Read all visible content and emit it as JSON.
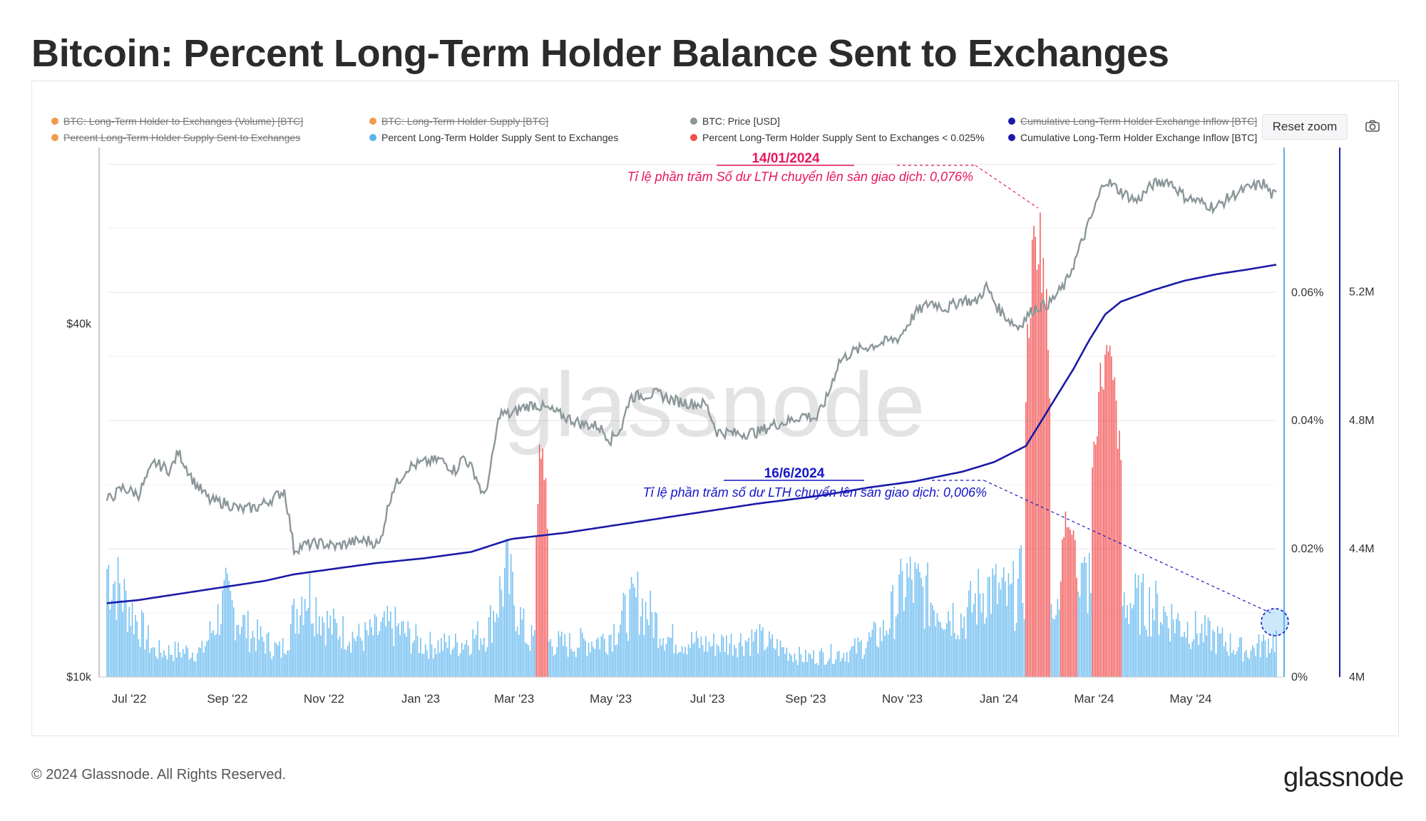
{
  "title": "Bitcoin: Percent Long-Term Holder Balance Sent to Exchanges",
  "legend": [
    {
      "label": "BTC: Long-Term Holder to Exchanges (Volume) [BTC]",
      "color": "#f2994a",
      "hidden": true
    },
    {
      "label": "BTC: Long-Term Holder Supply [BTC]",
      "color": "#f2994a",
      "hidden": true
    },
    {
      "label": "BTC: Price [USD]",
      "color": "#8b979a",
      "hidden": false
    },
    {
      "label": "Cumulative Long-Term Holder Exchange Inflow [BTC]",
      "color": "#1a1aa8",
      "hidden": true
    },
    {
      "label": "Percent Long-Term Holder Supply Sent to Exchanges",
      "color": "#f2994a",
      "hidden": true
    },
    {
      "label": "Percent Long-Term Holder Supply Sent to Exchanges",
      "color": "#5ab4ef",
      "hidden": false
    },
    {
      "label": "Percent Long-Term Holder Supply Sent to Exchanges < 0.025%",
      "color": "#f24c4c",
      "hidden": false
    },
    {
      "label": "Cumulative Long-Term Holder Exchange Inflow [BTC]",
      "color": "#1a1aa8",
      "hidden": false
    }
  ],
  "toolbar": {
    "reset_zoom": "Reset zoom",
    "camera_icon": "camera-icon"
  },
  "watermark": "glassnode",
  "annotations": [
    {
      "date": "14/01/2024",
      "text": "Tỉ lệ phần trăm Số dư LTH chuyển lên sàn giao dịch: 0,076%",
      "color": "#e8175d"
    },
    {
      "date": "16/6/2024",
      "text": "Tỉ lệ phần trăm số dư LTH chuyển lên sàn giao dịch: 0,006%",
      "color": "#1515c8"
    }
  ],
  "footer": {
    "copyright": "© 2024 Glassnode. All Rights Reserved.",
    "brand": "glassnode"
  },
  "chart_data": {
    "type": "bar",
    "x_ticks": [
      "Jul '22",
      "Sep '22",
      "Nov '22",
      "Jan '23",
      "Mar '23",
      "May '23",
      "Jul '23",
      "Sep '23",
      "Nov '23",
      "Jan '24",
      "Mar '24",
      "May '24"
    ],
    "y_left": {
      "ticks": [
        "$10k",
        "$40k"
      ],
      "scale": "log",
      "range": [
        10000,
        80000
      ]
    },
    "y_right_percent": {
      "ticks": [
        "0%",
        "0.02%",
        "0.04%",
        "0.06%"
      ],
      "range": [
        0,
        0.0826
      ]
    },
    "y_right_btc": {
      "ticks": [
        "4M",
        "4.4M",
        "4.8M",
        "5.2M"
      ],
      "range": [
        4000000,
        5650000
      ]
    },
    "price_usd": [
      [
        0,
        20000
      ],
      [
        10,
        21000
      ],
      [
        20,
        20500
      ],
      [
        30,
        23200
      ],
      [
        40,
        22500
      ],
      [
        45,
        24200
      ],
      [
        55,
        21500
      ],
      [
        65,
        20000
      ],
      [
        75,
        19800
      ],
      [
        85,
        19300
      ],
      [
        95,
        19500
      ],
      [
        105,
        20200
      ],
      [
        112,
        20800
      ],
      [
        118,
        16500
      ],
      [
        125,
        16800
      ],
      [
        135,
        16900
      ],
      [
        145,
        16700
      ],
      [
        155,
        17000
      ],
      [
        165,
        17100
      ],
      [
        172,
        16800
      ],
      [
        180,
        20800
      ],
      [
        190,
        22800
      ],
      [
        200,
        23200
      ],
      [
        210,
        23500
      ],
      [
        220,
        22500
      ],
      [
        225,
        23800
      ],
      [
        232,
        22300
      ],
      [
        238,
        20200
      ],
      [
        242,
        22500
      ],
      [
        248,
        28200
      ],
      [
        255,
        28000
      ],
      [
        262,
        28800
      ],
      [
        270,
        29200
      ],
      [
        280,
        28500
      ],
      [
        290,
        27700
      ],
      [
        300,
        27000
      ],
      [
        310,
        26800
      ],
      [
        318,
        25400
      ],
      [
        325,
        26700
      ],
      [
        330,
        30000
      ],
      [
        340,
        30300
      ],
      [
        348,
        30400
      ],
      [
        358,
        29600
      ],
      [
        368,
        29300
      ],
      [
        378,
        29200
      ],
      [
        385,
        26200
      ],
      [
        400,
        26000
      ],
      [
        412,
        26200
      ],
      [
        420,
        26900
      ],
      [
        430,
        27300
      ],
      [
        440,
        28000
      ],
      [
        448,
        27600
      ],
      [
        455,
        30200
      ],
      [
        462,
        34500
      ],
      [
        470,
        35800
      ],
      [
        480,
        36600
      ],
      [
        490,
        37200
      ],
      [
        500,
        37900
      ],
      [
        510,
        41700
      ],
      [
        520,
        43600
      ],
      [
        530,
        42500
      ],
      [
        540,
        44100
      ],
      [
        548,
        43500
      ],
      [
        555,
        46300
      ],
      [
        562,
        42700
      ],
      [
        568,
        41000
      ],
      [
        575,
        39500
      ],
      [
        585,
        42500
      ],
      [
        595,
        43400
      ],
      [
        605,
        46800
      ],
      [
        612,
        52100
      ],
      [
        622,
        61500
      ],
      [
        630,
        70500
      ],
      [
        640,
        67300
      ],
      [
        650,
        64800
      ],
      [
        660,
        69200
      ],
      [
        670,
        70300
      ],
      [
        680,
        66000
      ],
      [
        690,
        64500
      ],
      [
        700,
        63200
      ],
      [
        710,
        66300
      ],
      [
        720,
        68100
      ],
      [
        730,
        69500
      ],
      [
        735,
        66500
      ],
      [
        738,
        66200
      ]
    ],
    "cumulative_lth_inflow_btc": [
      [
        0,
        4230000
      ],
      [
        20,
        4240000
      ],
      [
        40,
        4255000
      ],
      [
        60,
        4270000
      ],
      [
        80,
        4285000
      ],
      [
        100,
        4300000
      ],
      [
        118,
        4320000
      ],
      [
        140,
        4335000
      ],
      [
        170,
        4355000
      ],
      [
        200,
        4370000
      ],
      [
        230,
        4390000
      ],
      [
        255,
        4430000
      ],
      [
        290,
        4450000
      ],
      [
        330,
        4480000
      ],
      [
        370,
        4510000
      ],
      [
        410,
        4540000
      ],
      [
        450,
        4565000
      ],
      [
        480,
        4590000
      ],
      [
        510,
        4610000
      ],
      [
        540,
        4640000
      ],
      [
        560,
        4670000
      ],
      [
        580,
        4720000
      ],
      [
        590,
        4800000
      ],
      [
        600,
        4880000
      ],
      [
        610,
        4960000
      ],
      [
        620,
        5050000
      ],
      [
        630,
        5130000
      ],
      [
        640,
        5170000
      ],
      [
        660,
        5205000
      ],
      [
        680,
        5235000
      ],
      [
        700,
        5255000
      ],
      [
        720,
        5270000
      ],
      [
        738,
        5285000
      ]
    ],
    "pct_lth_sent_to_exchanges": [
      [
        0,
        0.017
      ],
      [
        30,
        0.004
      ],
      [
        60,
        0.004
      ],
      [
        75,
        0.012
      ],
      [
        90,
        0.007
      ],
      [
        110,
        0.004
      ],
      [
        125,
        0.014
      ],
      [
        140,
        0.008
      ],
      [
        160,
        0.006
      ],
      [
        180,
        0.008
      ],
      [
        200,
        0.005
      ],
      [
        220,
        0.005
      ],
      [
        240,
        0.007
      ],
      [
        252,
        0.016
      ],
      [
        265,
        0.006
      ],
      [
        290,
        0.005
      ],
      [
        315,
        0.006
      ],
      [
        335,
        0.012
      ],
      [
        355,
        0.006
      ],
      [
        380,
        0.005
      ],
      [
        410,
        0.006
      ],
      [
        440,
        0.003
      ],
      [
        470,
        0.004
      ],
      [
        490,
        0.007
      ],
      [
        505,
        0.015
      ],
      [
        520,
        0.012
      ],
      [
        540,
        0.009
      ],
      [
        555,
        0.014
      ],
      [
        570,
        0.012
      ],
      [
        582,
        0.016
      ],
      [
        610,
        0.012
      ],
      [
        625,
        0.018
      ],
      [
        640,
        0.012
      ],
      [
        660,
        0.011
      ],
      [
        680,
        0.008
      ],
      [
        700,
        0.006
      ],
      [
        720,
        0.004
      ],
      [
        738,
        0.006
      ]
    ],
    "pct_highlight_red_regions": [
      {
        "start_day": 271,
        "end_day": 278,
        "max": 0.039
      },
      {
        "start_day": 580,
        "end_day": 595,
        "max": 0.076
      },
      {
        "start_day": 602,
        "end_day": 612,
        "max": 0.028
      },
      {
        "start_day": 622,
        "end_day": 640,
        "max": 0.054
      }
    ]
  }
}
